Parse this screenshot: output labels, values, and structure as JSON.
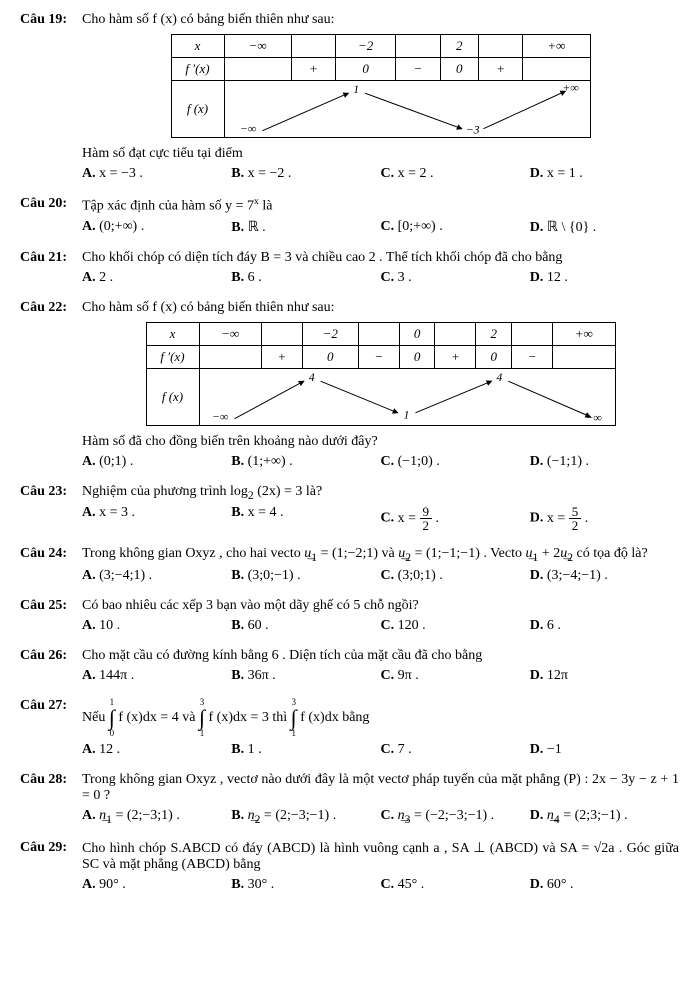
{
  "questions": [
    {
      "num": "Câu 19:",
      "text": "Cho hàm số  f (x)  có bảng biến thiên như sau:",
      "table": {
        "x": [
          "−∞",
          "",
          "−2",
          "",
          "2",
          "",
          "+∞"
        ],
        "fp": [
          "",
          "+",
          "0",
          "−",
          "0",
          "+",
          ""
        ],
        "fx": {
          "left_inf": "−∞",
          "peak": "1",
          "valley": "−3",
          "right_inf": "+∞"
        }
      },
      "post": "Hàm số đạt cực tiểu tại điểm",
      "opts": [
        "x = −3 .",
        "x = −2 .",
        "x = 2 .",
        "x = 1 ."
      ]
    },
    {
      "num": "Câu 20:",
      "text_html": "Tập xác định của hàm số  y = 7<sup>x</sup>  là",
      "opts": [
        "(0;+∞) .",
        "ℝ .",
        "[0;+∞) .",
        "ℝ \\ {0} ."
      ]
    },
    {
      "num": "Câu 21:",
      "text": "Cho khối chóp có diện tích đáy  B = 3  và chiều cao  2 . Thể tích khối chóp đã cho bằng",
      "opts": [
        "2 .",
        "6 .",
        "3 .",
        "12 ."
      ]
    },
    {
      "num": "Câu 22:",
      "text": "Cho hàm số  f (x)  có bảng biến thiên như sau:",
      "table2": {
        "x": [
          "−∞",
          "",
          "−2",
          "",
          "0",
          "",
          "2",
          "",
          "+∞"
        ],
        "fp": [
          "",
          "+",
          "0",
          "−",
          "0",
          "+",
          "0",
          "−",
          ""
        ],
        "fx": {
          "left": "−∞",
          "p1": "4",
          "v": "1",
          "p2": "4",
          "right": "−∞"
        }
      },
      "post": "Hàm số đã cho đồng biến trên khoảng nào dưới đây?",
      "opts": [
        "(0;1) .",
        "(1;+∞) .",
        "(−1;0) .",
        "(−1;1) ."
      ]
    },
    {
      "num": "Câu 23:",
      "text_html": "Nghiệm của phương trình  log<sub>2</sub> (2x) = 3  là?",
      "opts_html": [
        "x = 3 .",
        "x = 4 .",
        "x = <span class='frac'><span class='num'>9</span><span class='den'>2</span></span> .",
        "x = <span class='frac'><span class='num'>5</span><span class='den'>2</span></span> ."
      ]
    },
    {
      "num": "Câu 24:",
      "text_html": "Trong không gian  Oxyz , cho hai vecto  <i>u͢</i><sub>1</sub> = (1;−2;1)  và  <i>u͢</i><sub>2</sub> = (1;−1;−1) . Vecto  <i>u͢</i><sub>1</sub> + 2<i>u͢</i><sub>2</sub>  có tọa độ là?",
      "opts": [
        "(3;−4;1) .",
        "(3;0;−1) .",
        "(3;0;1) .",
        "(3;−4;−1) ."
      ]
    },
    {
      "num": "Câu 25:",
      "text": "Có bao nhiêu các xếp  3 bạn vào một dãy ghế có  5  chỗ ngồi?",
      "opts": [
        "10 .",
        "60 .",
        "120 .",
        "6 ."
      ]
    },
    {
      "num": "Câu 26:",
      "text": "Cho mặt cầu có đường kính bằng  6 . Diện tích của mặt cầu đã cho bằng",
      "opts": [
        "144π .",
        "36π .",
        "9π .",
        "12π"
      ]
    },
    {
      "num": "Câu 27:",
      "text_html": "Nếu <span class='lim'>1<br><span class='integral'>∫</span><br>0</span> f (x)dx = 4  và <span class='lim'>3<br><span class='integral'>∫</span><br>1</span> f (x)dx = 3 thì <span class='lim'>3<br><span class='integral'>∫</span><br>1</span> f (x)dx  bằng",
      "opts": [
        "12 .",
        "1 .",
        "7 .",
        "−1"
      ]
    },
    {
      "num": "Câu 28:",
      "text_html": "Trong không gian  Oxyz , vectơ nào dưới đây là một vectơ pháp tuyến của mặt phẳng (P) : 2x − 3y − z + 1 = 0 ?",
      "opts_html": [
        "<i>n͢</i><sub>1</sub> = (2;−3;1) .",
        "<i>n͢</i><sub>2</sub> = (2;−3;−1) .",
        "<i>n͢</i><sub>3</sub> = (−2;−3;−1) .",
        "<i>n͢</i><sub>4</sub> = (2;3;−1) ."
      ]
    },
    {
      "num": "Câu 29:",
      "text_html": "Cho hình chóp  S.ABCD  có đáy  (ABCD)  là hình vuông cạnh  a ,  SA ⊥ (ABCD)  và  SA = √2a . Góc giữa  SC  và mặt phẳng  (ABCD)  bằng",
      "opts": [
        "90° .",
        "30° .",
        "45° .",
        "60° ."
      ]
    }
  ],
  "letters": [
    "A.",
    "B.",
    "C.",
    "D."
  ],
  "colors": {
    "text": "#000000",
    "border": "#000000",
    "bg": "#ffffff"
  }
}
